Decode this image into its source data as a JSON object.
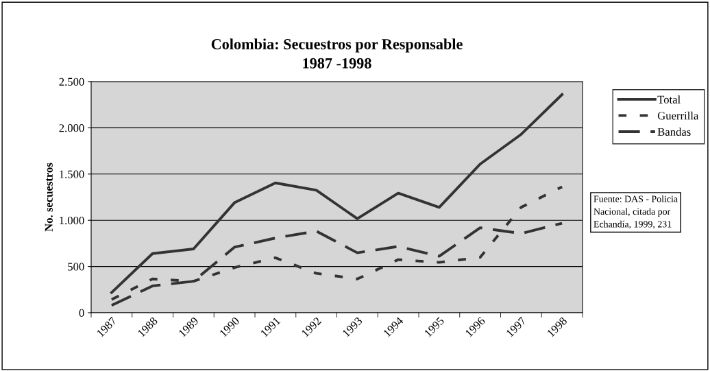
{
  "chart_data": {
    "type": "line",
    "title": "Colombia: Secuestros por Responsable\n1987 -1998",
    "ylabel": "No. secuestros",
    "categories": [
      "1987",
      "1988",
      "1989",
      "1990",
      "1991",
      "1992",
      "1993",
      "1994",
      "1995",
      "1996",
      "1997",
      "1998"
    ],
    "series": [
      {
        "name": "Total",
        "color": "#333333",
        "line_style": "solid",
        "values": [
          218,
          640,
          690,
          1190,
          1404,
          1325,
          1017,
          1293,
          1140,
          1608,
          1929,
          2360
        ]
      },
      {
        "name": "Guerrilla",
        "color": "#333333",
        "line_style": "dotted",
        "values": [
          143,
          365,
          340,
          488,
          594,
          426,
          365,
          574,
          544,
          599,
          1140,
          1362
        ]
      },
      {
        "name": "Bandas",
        "color": "#333333",
        "line_style": "dashed",
        "values": [
          80,
          290,
          340,
          709,
          808,
          882,
          648,
          717,
          611,
          919,
          857,
          968
        ]
      }
    ],
    "ylim": [
      0,
      2500
    ],
    "yticks": [
      {
        "value": 0,
        "label": "0"
      },
      {
        "value": 500,
        "label": "500"
      },
      {
        "value": 1000,
        "label": "1.000"
      },
      {
        "value": 1500,
        "label": "1.500"
      },
      {
        "value": 2000,
        "label": "2.000"
      },
      {
        "value": 2500,
        "label": "2.500"
      }
    ],
    "grid": "y",
    "legend": "right",
    "marker": "none",
    "annotations": [
      "Fuente: DAS - Policia Nacional, citada por Echandía, 1999, 231"
    ]
  }
}
